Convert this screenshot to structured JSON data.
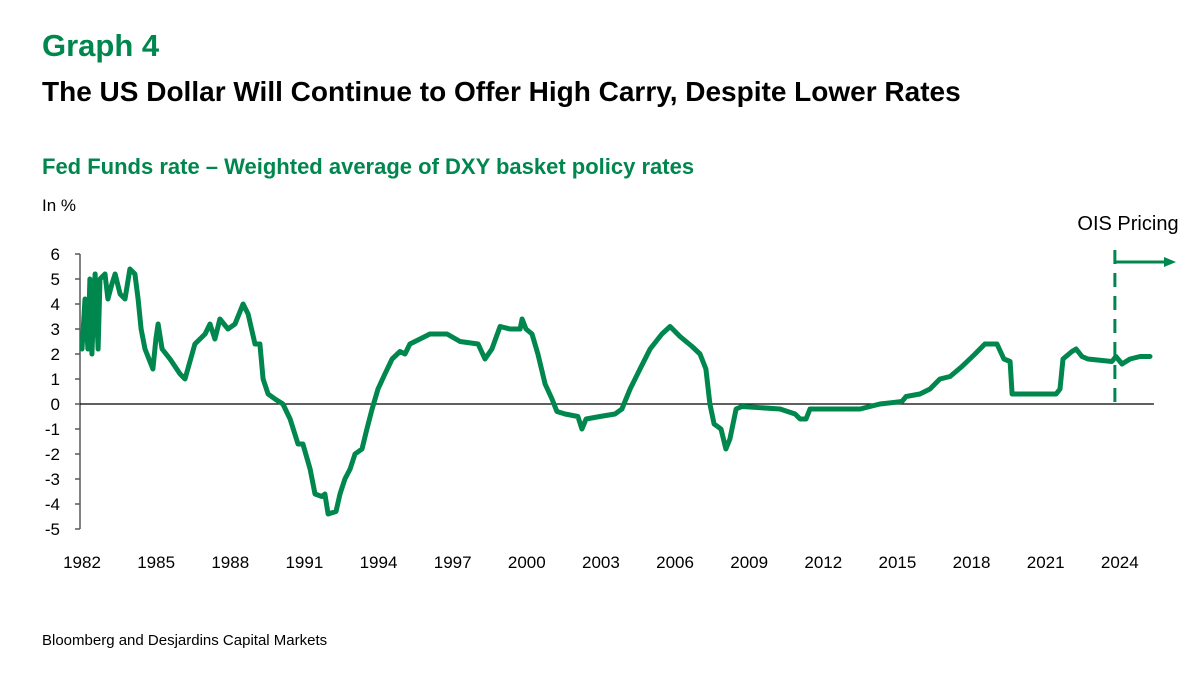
{
  "header": {
    "graph_label": "Graph 4",
    "title": "The US Dollar Will Continue to Offer High Carry, Despite Lower Rates",
    "subtitle": "Fed Funds rate – Weighted average of DXY basket policy rates",
    "unit": "In %"
  },
  "footer": {
    "source": "Bloomberg and Desjardins Capital Markets"
  },
  "chart_data": {
    "type": "line",
    "title": "Fed Funds rate – Weighted average of DXY basket policy rates",
    "ylabel": "In %",
    "xlim": [
      1982,
      2025.3
    ],
    "ylim": [
      -5,
      6
    ],
    "yticks": [
      6,
      5,
      4,
      3,
      2,
      1,
      0,
      -1,
      -2,
      -3,
      -4,
      -5
    ],
    "xticks": [
      1982,
      1985,
      1988,
      1991,
      1994,
      1997,
      2000,
      2003,
      2006,
      2009,
      2012,
      2015,
      2018,
      2021,
      2024
    ],
    "grid": false,
    "line_color": "#00874e",
    "annotation": {
      "label": "OIS Pricing",
      "x": 2023.8,
      "style": "dashed vertical line with right arrow"
    },
    "series": [
      {
        "points": [
          [
            1982.0,
            2.2
          ],
          [
            1982.12,
            4.2
          ],
          [
            1982.24,
            2.2
          ],
          [
            1982.32,
            5.0
          ],
          [
            1982.4,
            2.0
          ],
          [
            1982.53,
            5.2
          ],
          [
            1982.65,
            2.2
          ],
          [
            1982.73,
            5.0
          ],
          [
            1982.93,
            5.2
          ],
          [
            1983.05,
            4.2
          ],
          [
            1983.21,
            4.8
          ],
          [
            1983.34,
            5.2
          ],
          [
            1983.54,
            4.4
          ],
          [
            1983.74,
            4.2
          ],
          [
            1983.94,
            5.4
          ],
          [
            1984.14,
            5.2
          ],
          [
            1984.27,
            4.2
          ],
          [
            1984.39,
            3.0
          ],
          [
            1984.55,
            2.2
          ],
          [
            1984.87,
            1.4
          ],
          [
            1984.99,
            2.6
          ],
          [
            1985.08,
            3.2
          ],
          [
            1985.24,
            2.2
          ],
          [
            1985.56,
            1.8
          ],
          [
            1985.97,
            1.2
          ],
          [
            1986.17,
            1.0
          ],
          [
            1986.57,
            2.4
          ],
          [
            1986.98,
            2.8
          ],
          [
            1987.18,
            3.2
          ],
          [
            1987.38,
            2.6
          ],
          [
            1987.58,
            3.4
          ],
          [
            1987.91,
            3.0
          ],
          [
            1988.19,
            3.2
          ],
          [
            1988.52,
            4.0
          ],
          [
            1988.72,
            3.6
          ],
          [
            1989.0,
            2.4
          ],
          [
            1989.2,
            2.4
          ],
          [
            1989.33,
            1.0
          ],
          [
            1989.53,
            0.4
          ],
          [
            1989.81,
            0.2
          ],
          [
            1990.13,
            0.0
          ],
          [
            1990.42,
            -0.6
          ],
          [
            1990.74,
            -1.6
          ],
          [
            1990.94,
            -1.6
          ],
          [
            1991.23,
            -2.6
          ],
          [
            1991.43,
            -3.6
          ],
          [
            1991.71,
            -3.7
          ],
          [
            1991.83,
            -3.6
          ],
          [
            1991.96,
            -4.4
          ],
          [
            1992.28,
            -4.3
          ],
          [
            1992.44,
            -3.6
          ],
          [
            1992.64,
            -3.0
          ],
          [
            1992.85,
            -2.6
          ],
          [
            1993.05,
            -2.0
          ],
          [
            1993.33,
            -1.8
          ],
          [
            1993.53,
            -1.0
          ],
          [
            1993.74,
            -0.2
          ],
          [
            1993.98,
            0.6
          ],
          [
            1994.26,
            1.2
          ],
          [
            1994.55,
            1.8
          ],
          [
            1994.87,
            2.1
          ],
          [
            1995.07,
            2.0
          ],
          [
            1995.27,
            2.4
          ],
          [
            1995.68,
            2.6
          ],
          [
            1996.08,
            2.8
          ],
          [
            1996.49,
            2.8
          ],
          [
            1996.77,
            2.8
          ],
          [
            1997.3,
            2.5
          ],
          [
            1998.03,
            2.4
          ],
          [
            1998.31,
            1.8
          ],
          [
            1998.59,
            2.2
          ],
          [
            1998.92,
            3.1
          ],
          [
            1999.32,
            3.0
          ],
          [
            1999.73,
            3.0
          ],
          [
            1999.81,
            3.4
          ],
          [
            1999.97,
            3.0
          ],
          [
            2000.21,
            2.8
          ],
          [
            2000.45,
            2.0
          ],
          [
            2000.74,
            0.8
          ],
          [
            2001.02,
            0.2
          ],
          [
            2001.22,
            -0.3
          ],
          [
            2001.55,
            -0.4
          ],
          [
            2002.07,
            -0.5
          ],
          [
            2002.23,
            -1.0
          ],
          [
            2002.4,
            -0.6
          ],
          [
            2002.96,
            -0.5
          ],
          [
            2003.57,
            -0.4
          ],
          [
            2003.85,
            -0.2
          ],
          [
            2004.18,
            0.6
          ],
          [
            2004.58,
            1.4
          ],
          [
            2004.99,
            2.2
          ],
          [
            2005.47,
            2.8
          ],
          [
            2005.8,
            3.1
          ],
          [
            2006.2,
            2.7
          ],
          [
            2006.69,
            2.3
          ],
          [
            2007.01,
            2.0
          ],
          [
            2007.25,
            1.4
          ],
          [
            2007.41,
            0.0
          ],
          [
            2007.58,
            -0.8
          ],
          [
            2007.86,
            -1.0
          ],
          [
            2008.06,
            -1.8
          ],
          [
            2008.22,
            -1.4
          ],
          [
            2008.47,
            -0.2
          ],
          [
            2008.71,
            -0.1
          ],
          [
            2010.25,
            -0.2
          ],
          [
            2010.86,
            -0.4
          ],
          [
            2011.06,
            -0.6
          ],
          [
            2011.3,
            -0.6
          ],
          [
            2011.46,
            -0.2
          ],
          [
            2011.87,
            -0.2
          ],
          [
            2013.49,
            -0.2
          ],
          [
            2014.29,
            0.0
          ],
          [
            2015.18,
            0.1
          ],
          [
            2015.35,
            0.3
          ],
          [
            2015.91,
            0.4
          ],
          [
            2016.32,
            0.6
          ],
          [
            2016.72,
            1.0
          ],
          [
            2017.13,
            1.1
          ],
          [
            2017.61,
            1.5
          ],
          [
            2018.14,
            2.0
          ],
          [
            2018.54,
            2.4
          ],
          [
            2019.03,
            2.4
          ],
          [
            2019.31,
            1.8
          ],
          [
            2019.56,
            1.7
          ],
          [
            2019.64,
            0.4
          ],
          [
            2021.42,
            0.4
          ],
          [
            2021.58,
            0.6
          ],
          [
            2021.7,
            1.8
          ],
          [
            2022.06,
            2.1
          ],
          [
            2022.23,
            2.2
          ],
          [
            2022.47,
            1.9
          ],
          [
            2022.71,
            1.8
          ],
          [
            2023.68,
            1.7
          ],
          [
            2023.84,
            1.9
          ],
          [
            2024.09,
            1.6
          ],
          [
            2024.41,
            1.8
          ],
          [
            2024.82,
            1.9
          ],
          [
            2025.22,
            1.9
          ]
        ]
      }
    ]
  }
}
